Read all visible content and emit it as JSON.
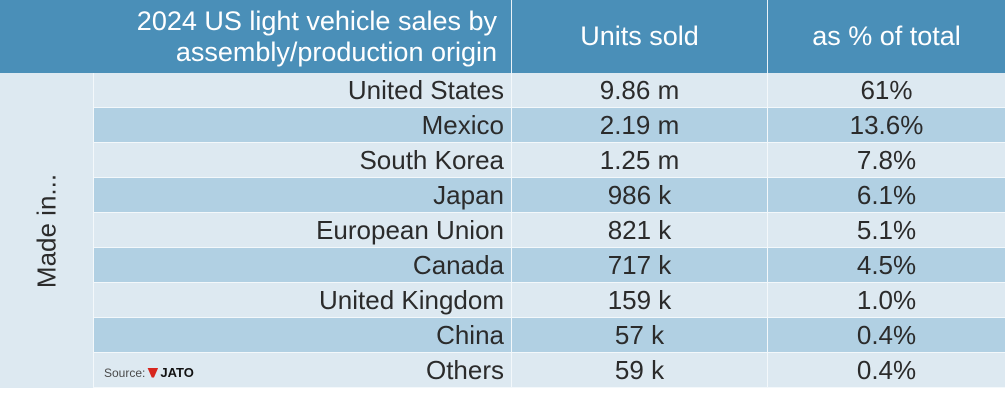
{
  "header": {
    "title_line1": "2024 US light vehicle sales by",
    "title_line2": "assembly/production origin",
    "units_label": "Units sold",
    "pct_label": "as % of total"
  },
  "side_label": "Made in...",
  "rows": [
    {
      "origin": "United States",
      "units": "9.86 m",
      "pct": "61%"
    },
    {
      "origin": "Mexico",
      "units": "2.19 m",
      "pct": "13.6%"
    },
    {
      "origin": "South Korea",
      "units": "1.25 m",
      "pct": "7.8%"
    },
    {
      "origin": "Japan",
      "units": "986 k",
      "pct": "6.1%"
    },
    {
      "origin": "European Union",
      "units": "821 k",
      "pct": "5.1%"
    },
    {
      "origin": "Canada",
      "units": "717 k",
      "pct": "4.5%"
    },
    {
      "origin": "United Kingdom",
      "units": "159 k",
      "pct": "1.0%"
    },
    {
      "origin": "China",
      "units": "57 k",
      "pct": "0.4%"
    },
    {
      "origin": "Others",
      "units": "59 k",
      "pct": "0.4%"
    }
  ],
  "source": {
    "label": "Source:",
    "brand": "JATO",
    "brand_color": "#d7261e"
  },
  "colors": {
    "header": "#4a8fb8",
    "row_light": "#dde9f1",
    "row_dark": "#b1d0e3"
  }
}
